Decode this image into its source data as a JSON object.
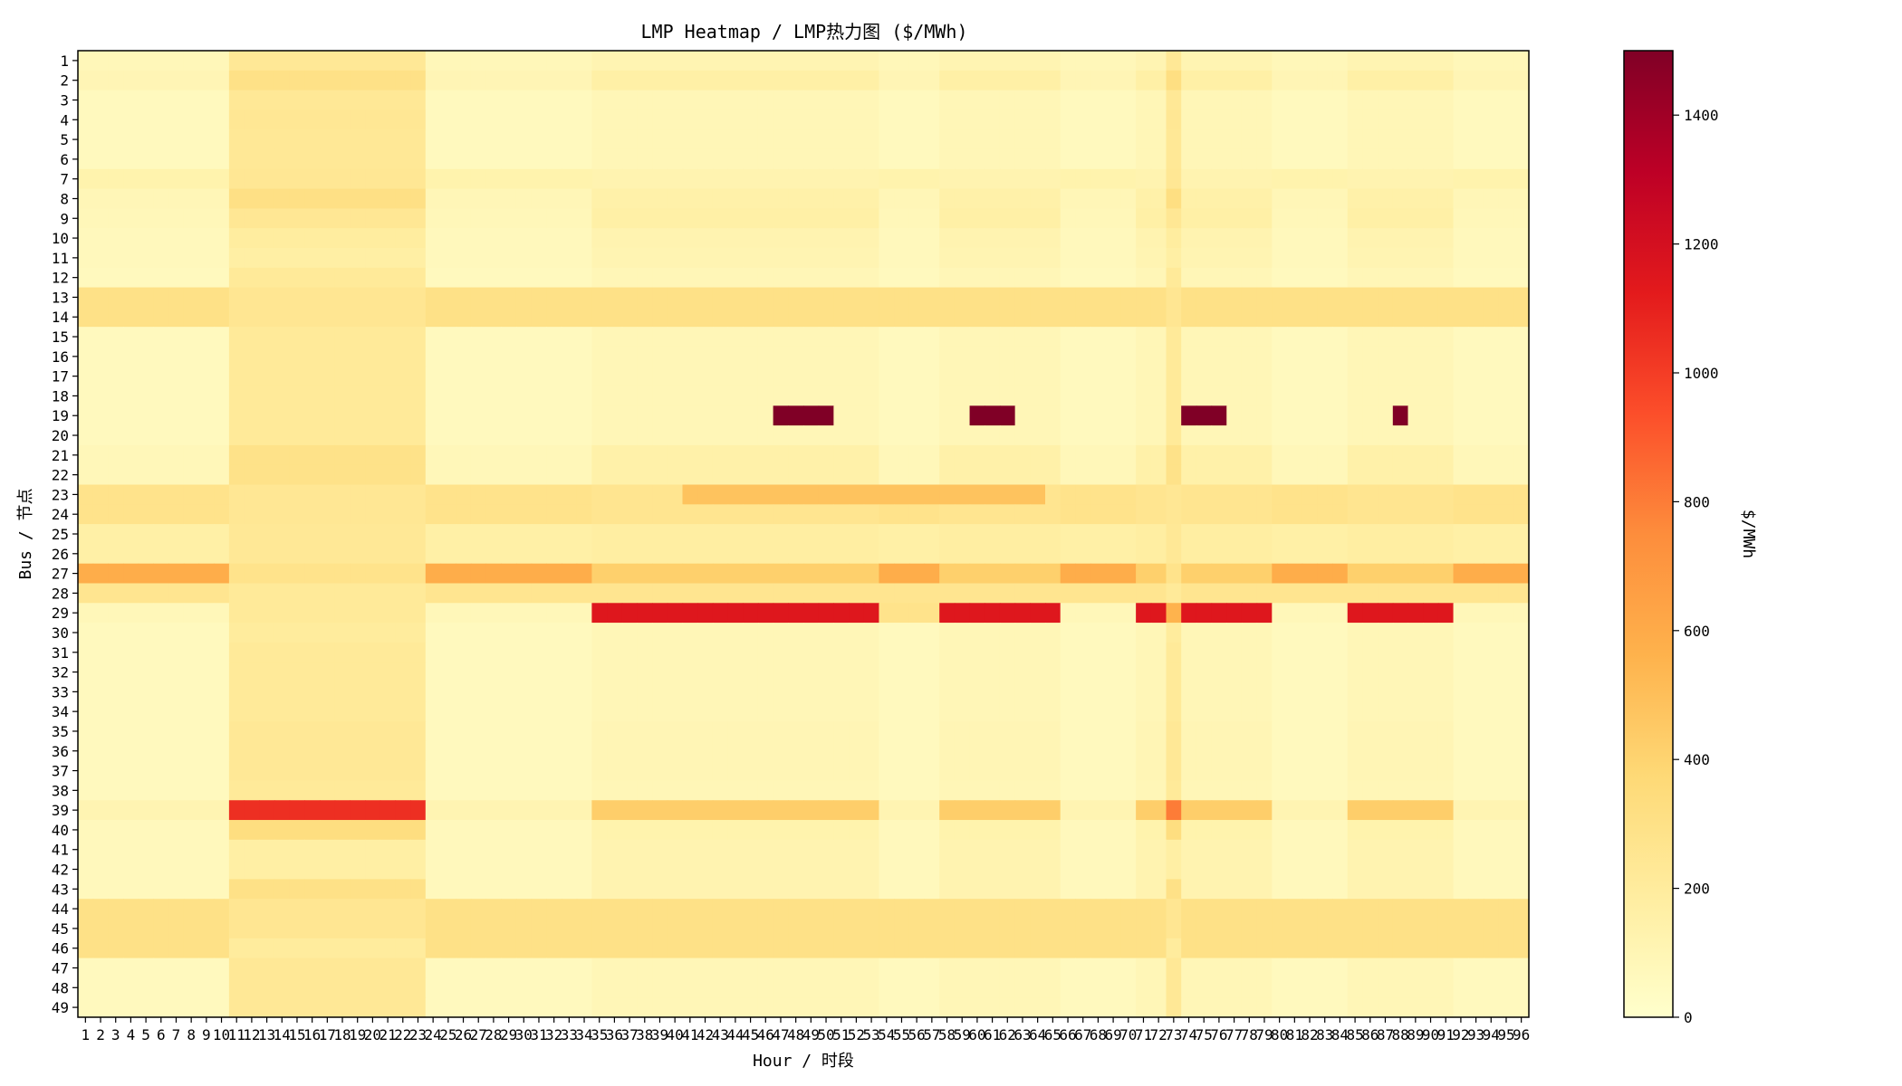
{
  "chart_data": {
    "type": "heatmap",
    "title": "LMP Heatmap / LMP热力图 ($/MWh)",
    "xlabel": "Hour / 时段",
    "ylabel": "Bus / 节点",
    "x_categories": [
      "1",
      "2",
      "3",
      "4",
      "5",
      "6",
      "7",
      "8",
      "9",
      "10",
      "11",
      "12",
      "13",
      "14",
      "15",
      "16",
      "17",
      "18",
      "19",
      "20",
      "21",
      "22",
      "23",
      "24",
      "25",
      "26",
      "27",
      "28",
      "29",
      "30",
      "31",
      "32",
      "33",
      "34",
      "35",
      "36",
      "37",
      "38",
      "39",
      "40",
      "41",
      "42",
      "43",
      "44",
      "45",
      "46",
      "47",
      "48",
      "49",
      "50",
      "51",
      "52",
      "53",
      "54",
      "55",
      "56",
      "57",
      "58",
      "59",
      "60",
      "61",
      "62",
      "63",
      "64",
      "65",
      "66",
      "67",
      "68",
      "69",
      "70",
      "71",
      "72",
      "73",
      "74",
      "75",
      "76",
      "77",
      "78",
      "79",
      "80",
      "81",
      "82",
      "83",
      "84",
      "85",
      "86",
      "87",
      "88",
      "89",
      "90",
      "91",
      "92",
      "93",
      "94",
      "95",
      "96"
    ],
    "y_categories": [
      "1",
      "2",
      "3",
      "4",
      "5",
      "6",
      "7",
      "8",
      "9",
      "10",
      "11",
      "12",
      "13",
      "14",
      "15",
      "16",
      "17",
      "18",
      "19",
      "20",
      "21",
      "22",
      "23",
      "24",
      "25",
      "26",
      "27",
      "28",
      "29",
      "30",
      "31",
      "32",
      "33",
      "34",
      "35",
      "36",
      "37",
      "38",
      "39",
      "40",
      "41",
      "42",
      "43",
      "44",
      "45",
      "46",
      "47",
      "48",
      "49"
    ],
    "colorbar": {
      "label": "$/MWh",
      "range": [
        0,
        1500
      ],
      "ticks": [
        0,
        200,
        400,
        600,
        800,
        1000,
        1200,
        1400
      ],
      "colormap": "YlOrRd",
      "stops": [
        "#ffffcc",
        "#ffeda0",
        "#fed976",
        "#feb24c",
        "#fd8d3c",
        "#fc4e2a",
        "#e31a1c",
        "#bd0026",
        "#800026"
      ]
    },
    "period_groups": [
      {
        "hours": [
          1,
          10
        ],
        "level": 0
      },
      {
        "hours": [
          11,
          23
        ],
        "level": 1
      },
      {
        "hours": [
          24,
          34
        ],
        "level": 0
      },
      {
        "hours": [
          35,
          53
        ],
        "level": 2
      },
      {
        "hours": [
          54,
          57
        ],
        "level": 0
      },
      {
        "hours": [
          58,
          65
        ],
        "level": 2
      },
      {
        "hours": [
          66,
          70
        ],
        "level": 0
      },
      {
        "hours": [
          71,
          72
        ],
        "level": 2
      },
      {
        "hours": [
          73,
          73
        ],
        "level": 1
      },
      {
        "hours": [
          74,
          79
        ],
        "level": 2
      },
      {
        "hours": [
          80,
          84
        ],
        "level": 0
      },
      {
        "hours": [
          85,
          91
        ],
        "level": 2
      },
      {
        "hours": [
          92,
          96
        ],
        "level": 0
      }
    ],
    "bus_profile": {
      "note": "value = [off-peak, peak, mid] price level per bus ($/MWh)",
      "levels": {
        "1": [
          80,
          230,
          110
        ],
        "2": [
          100,
          300,
          160
        ],
        "3": [
          60,
          230,
          90
        ],
        "4": [
          60,
          240,
          90
        ],
        "5": [
          60,
          230,
          90
        ],
        "6": [
          60,
          230,
          90
        ],
        "7": [
          130,
          240,
          120
        ],
        "8": [
          90,
          310,
          150
        ],
        "9": [
          80,
          240,
          160
        ],
        "10": [
          70,
          190,
          120
        ],
        "11": [
          70,
          170,
          110
        ],
        "12": [
          60,
          220,
          90
        ],
        "13": [
          300,
          250,
          300
        ],
        "14": [
          300,
          250,
          300
        ],
        "15": [
          60,
          220,
          90
        ],
        "16": [
          60,
          220,
          90
        ],
        "17": [
          60,
          220,
          90
        ],
        "18": [
          60,
          220,
          90
        ],
        "19": [
          60,
          220,
          90
        ],
        "20": [
          60,
          220,
          90
        ],
        "21": [
          80,
          290,
          150
        ],
        "22": [
          80,
          290,
          150
        ],
        "23": [
          280,
          240,
          260
        ],
        "24": [
          280,
          240,
          260
        ],
        "25": [
          160,
          230,
          180
        ],
        "26": [
          160,
          230,
          180
        ],
        "27": [
          590,
          280,
          420
        ],
        "28": [
          260,
          220,
          260
        ],
        "29": [
          80,
          220,
          1150
        ],
        "30": [
          60,
          200,
          90
        ],
        "31": [
          60,
          220,
          90
        ],
        "32": [
          60,
          220,
          90
        ],
        "33": [
          60,
          220,
          90
        ],
        "34": [
          60,
          220,
          90
        ],
        "35": [
          60,
          230,
          100
        ],
        "36": [
          60,
          230,
          100
        ],
        "37": [
          60,
          230,
          100
        ],
        "38": [
          60,
          220,
          90
        ],
        "39": [
          110,
          1050,
          430
        ],
        "40": [
          70,
          330,
          130
        ],
        "41": [
          70,
          170,
          120
        ],
        "42": [
          70,
          170,
          120
        ],
        "43": [
          70,
          300,
          120
        ],
        "44": [
          300,
          250,
          300
        ],
        "45": [
          300,
          250,
          300
        ],
        "46": [
          300,
          200,
          300
        ],
        "47": [
          60,
          230,
          90
        ],
        "48": [
          60,
          230,
          90
        ],
        "49": [
          60,
          230,
          90
        ]
      }
    },
    "overrides": [
      {
        "bus": 19,
        "hours": [
          47,
          50
        ],
        "value": 1500
      },
      {
        "bus": 19,
        "hours": [
          60,
          62
        ],
        "value": 1500
      },
      {
        "bus": 19,
        "hours": [
          74,
          76
        ],
        "value": 1500
      },
      {
        "bus": 19,
        "hours": [
          88,
          88
        ],
        "value": 1500
      },
      {
        "bus": 23,
        "hours": [
          41,
          64
        ],
        "value": 480
      },
      {
        "bus": 29,
        "hours": [
          54,
          57
        ],
        "value": 280
      },
      {
        "bus": 29,
        "hours": [
          66,
          70
        ],
        "value": 80
      },
      {
        "bus": 29,
        "hours": [
          80,
          84
        ],
        "value": 80
      },
      {
        "bus": 29,
        "hours": [
          73,
          73
        ],
        "value": 560
      },
      {
        "bus": 39,
        "hours": [
          73,
          73
        ],
        "value": 800
      },
      {
        "bus": 8,
        "hours": [
          73,
          73
        ],
        "value": 320
      },
      {
        "bus": 2,
        "hours": [
          73,
          73
        ],
        "value": 320
      }
    ]
  }
}
